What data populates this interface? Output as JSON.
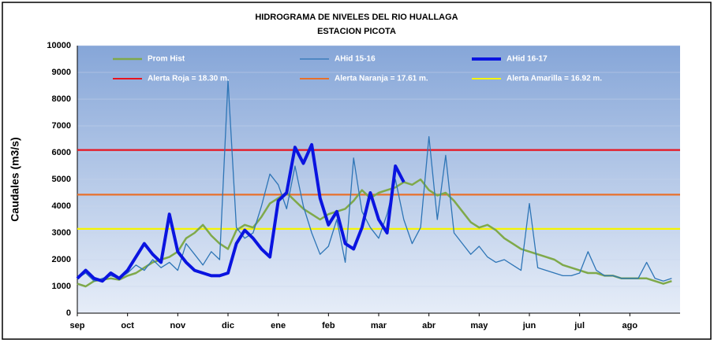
{
  "chart_data": {
    "type": "line",
    "title": "HIDROGRAMA DE NIVELES  DEL RIO HUALLAGA",
    "subtitle": "ESTACION PICOTA",
    "y_label": "Caudales  (m3/s)",
    "categories": [
      "sep",
      null,
      null,
      null,
      null,
      null,
      "oct",
      null,
      null,
      null,
      null,
      null,
      "nov",
      null,
      null,
      null,
      null,
      null,
      "dic",
      null,
      null,
      null,
      null,
      null,
      "ene",
      null,
      null,
      null,
      null,
      null,
      "feb",
      null,
      null,
      null,
      null,
      null,
      "mar",
      null,
      null,
      null,
      null,
      null,
      "abr",
      null,
      null,
      null,
      null,
      null,
      "may",
      null,
      null,
      null,
      null,
      null,
      "jun",
      null,
      null,
      null,
      null,
      null,
      "jul",
      null,
      null,
      null,
      null,
      null,
      "ago",
      null,
      null,
      null,
      null,
      null
    ],
    "ylim": [
      0,
      10000
    ],
    "yticks": [
      0,
      1000,
      2000,
      3000,
      4000,
      5000,
      6000,
      7000,
      8000,
      9000,
      10000
    ],
    "grid": true,
    "series": [
      {
        "name": "Prom Hist",
        "color": "#7fa94a",
        "width": 2.5,
        "values": [
          1100,
          1000,
          1200,
          1250,
          1300,
          1250,
          1400,
          1500,
          1700,
          1900,
          2000,
          2100,
          2300,
          2800,
          3000,
          3300,
          2900,
          2600,
          2400,
          3100,
          3300,
          3200,
          3600,
          4100,
          4300,
          4500,
          4200,
          3900,
          3700,
          3500,
          3700,
          3800,
          3900,
          4200,
          4600,
          4300,
          4500,
          4600,
          4700,
          4900,
          4800,
          5000,
          4600,
          4400,
          4500,
          4200,
          3800,
          3400,
          3200,
          3300,
          3100,
          2800,
          2600,
          2400,
          2300,
          2200,
          2100,
          2000,
          1800,
          1700,
          1600,
          1500,
          1500,
          1400,
          1400,
          1300,
          1300,
          1300,
          1300,
          1200,
          1100,
          1200
        ]
      },
      {
        "name": "AHid 15-16",
        "color": "#2e75b6",
        "width": 1.3,
        "values": [
          1300,
          1500,
          1200,
          1300,
          1400,
          1300,
          1500,
          1800,
          1600,
          2000,
          1700,
          1900,
          1600,
          2600,
          2200,
          1800,
          2300,
          2000,
          8700,
          3200,
          2800,
          3000,
          4000,
          5200,
          4800,
          3900,
          5500,
          4000,
          3000,
          2200,
          2500,
          3500,
          1900,
          5800,
          3800,
          3200,
          2800,
          3700,
          5000,
          3500,
          2600,
          3200,
          6600,
          3500,
          5900,
          3000,
          2600,
          2200,
          2500,
          2100,
          1900,
          2000,
          1800,
          1600,
          4100,
          1700,
          1600,
          1500,
          1400,
          1400,
          1500,
          2300,
          1600,
          1400,
          1400,
          1300,
          1300,
          1300,
          1900,
          1300,
          1200,
          1300
        ]
      },
      {
        "name": "AHid 16-17",
        "color": "#0a14e0",
        "width": 4,
        "values": [
          1300,
          1600,
          1300,
          1200,
          1500,
          1300,
          1600,
          2100,
          2600,
          2200,
          1900,
          3700,
          2300,
          1900,
          1600,
          1500,
          1400,
          1400,
          1500,
          2600,
          3100,
          2800,
          2400,
          2100,
          4200,
          4500,
          6200,
          5600,
          6300,
          4300,
          3300,
          3800,
          2600,
          2400,
          3200,
          4500,
          3500,
          3000,
          5500,
          4900,
          null,
          null,
          null,
          null,
          null,
          null,
          null,
          null,
          null,
          null,
          null,
          null,
          null,
          null,
          null,
          null,
          null,
          null,
          null,
          null,
          null,
          null,
          null,
          null,
          null,
          null,
          null,
          null,
          null,
          null,
          null,
          null
        ]
      }
    ],
    "thresholds": [
      {
        "name": "Alerta Roja = 18.30 m.",
        "color": "#e8141e",
        "value": 6100
      },
      {
        "name": "Alerta Naranja = 17.61 m.",
        "color": "#e8702a",
        "value": 4430
      },
      {
        "name": "Alerta Amarilla = 16.92 m.",
        "color": "#f5f500",
        "value": 3150
      }
    ]
  }
}
